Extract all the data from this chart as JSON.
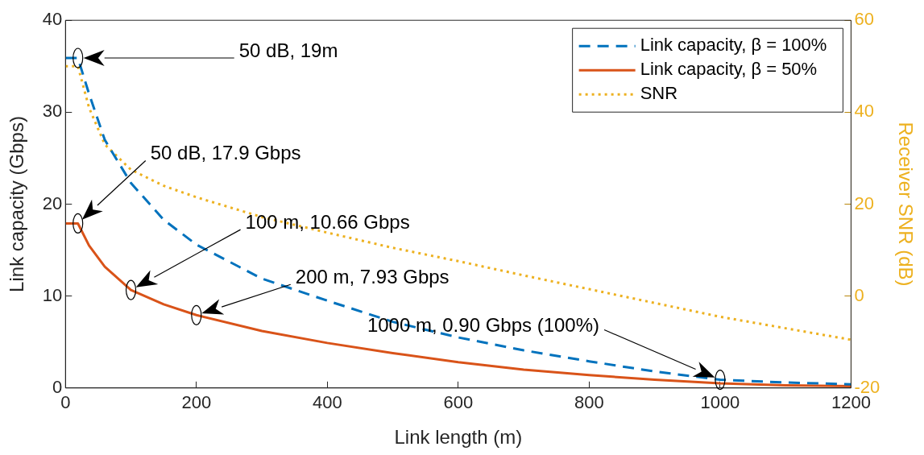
{
  "chart_data": {
    "type": "line",
    "xlabel": "Link length (m)",
    "ylabel": "Link capacity (Gbps)",
    "y2label": "Receiver SNR (dB)",
    "x": [
      0,
      19,
      36,
      60,
      100,
      150,
      200,
      300,
      400,
      500,
      600,
      700,
      800,
      900,
      1000,
      1100,
      1200
    ],
    "xlim": [
      0,
      1200
    ],
    "xticks": [
      0,
      200,
      400,
      600,
      800,
      1000,
      1200
    ],
    "ylim": [
      0,
      40
    ],
    "yticks": [
      0,
      10,
      20,
      30,
      40
    ],
    "y2lim": [
      -20,
      60
    ],
    "y2ticks": [
      -20,
      0,
      20,
      40,
      60
    ],
    "series": [
      {
        "name": "Link capacity, β = 100%",
        "color": "#0072bd",
        "line_style": "dashed",
        "values": [
          35.9,
          35.9,
          32,
          27,
          22.3,
          18.3,
          15.6,
          11.9,
          9.5,
          7.2,
          5.5,
          4.1,
          2.9,
          1.8,
          0.9,
          0.6,
          0.4
        ]
      },
      {
        "name": "Link capacity, β = 50%",
        "color": "#d95319",
        "line_style": "solid",
        "values": [
          17.9,
          17.9,
          15.5,
          13.2,
          10.66,
          9.1,
          7.93,
          6.2,
          4.9,
          3.8,
          2.8,
          2.0,
          1.4,
          0.9,
          0.5,
          0.3,
          0.2
        ]
      },
      {
        "name": "SNR",
        "color": "#edb120",
        "line_style": "dotted",
        "axis": "y2",
        "values": [
          50,
          50,
          41,
          33,
          27.5,
          24,
          21.5,
          17.2,
          13.8,
          10.5,
          7.6,
          4.5,
          1.5,
          -1.5,
          -4.5,
          -7,
          -9.5
        ]
      }
    ],
    "annotations": [
      "50 dB, 19m",
      "50 dB, 17.9 Gbps",
      "100 m, 10.66 Gbps",
      "200 m, 7.93 Gbps",
      "1000 m, 0.90 Gbps (100%)"
    ],
    "legend": "top right",
    "grid": false,
    "marker": "none"
  }
}
